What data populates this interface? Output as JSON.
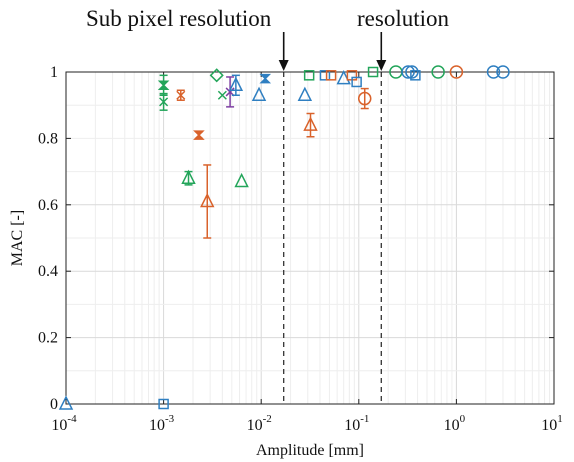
{
  "annotations": [
    {
      "id": "subpixel",
      "text": "Sub pixel resolution",
      "x_mm": 0.017
    },
    {
      "id": "resolution",
      "text": "resolution",
      "x_mm": 0.17
    }
  ],
  "chart_data": {
    "type": "scatter",
    "xscale": "log",
    "xlabel": "Amplitude [mm]",
    "ylabel": "MAC [-]",
    "xlim": [
      0.0001,
      10
    ],
    "ylim": [
      0,
      1
    ],
    "xticks": [
      0.0001,
      0.001,
      0.01,
      0.1,
      1,
      10
    ],
    "xtick_labels": [
      {
        "base": "10",
        "exp": "-4"
      },
      {
        "base": "10",
        "exp": "-3"
      },
      {
        "base": "10",
        "exp": "-2"
      },
      {
        "base": "10",
        "exp": "-1"
      },
      {
        "base": "10",
        "exp": "0"
      },
      {
        "base": "10",
        "exp": "1"
      }
    ],
    "yticks": [
      0,
      0.2,
      0.4,
      0.6,
      0.8,
      1
    ],
    "ytick_labels": [
      "0",
      "0.2",
      "0.4",
      "0.6",
      "0.8",
      "1"
    ],
    "grid": true,
    "vlines": [
      0.017,
      0.17
    ],
    "colors": {
      "blue": "#2f7fc1",
      "orange": "#d9622b",
      "green": "#23a55a",
      "purple": "#7e3fa3"
    },
    "points": [
      {
        "x": 0.0001,
        "y": 0.0,
        "marker": "triangle",
        "color": "blue"
      },
      {
        "x": 0.001,
        "y": 0.0,
        "marker": "square",
        "color": "blue"
      },
      {
        "x": 0.001,
        "y": 0.96,
        "marker": "hourglass",
        "color": "green",
        "err": 0.03
      },
      {
        "x": 0.001,
        "y": 0.91,
        "marker": "x",
        "color": "green",
        "err": 0.025
      },
      {
        "x": 0.0015,
        "y": 0.93,
        "marker": "x",
        "color": "orange",
        "err": 0.015
      },
      {
        "x": 0.0018,
        "y": 0.68,
        "marker": "triangle",
        "color": "green",
        "err": 0.02
      },
      {
        "x": 0.0023,
        "y": 0.81,
        "marker": "hourglass",
        "color": "orange",
        "err": 0.01
      },
      {
        "x": 0.0028,
        "y": 0.61,
        "marker": "triangle",
        "color": "orange",
        "err": 0.11
      },
      {
        "x": 0.0035,
        "y": 0.99,
        "marker": "diamond",
        "color": "green"
      },
      {
        "x": 0.004,
        "y": 0.93,
        "marker": "x",
        "color": "green"
      },
      {
        "x": 0.0048,
        "y": 0.94,
        "marker": "x",
        "color": "purple",
        "err": 0.045
      },
      {
        "x": 0.0055,
        "y": 0.96,
        "marker": "triangle",
        "color": "blue",
        "err": 0.03
      },
      {
        "x": 0.0063,
        "y": 0.67,
        "marker": "triangle",
        "color": "green"
      },
      {
        "x": 0.0095,
        "y": 0.93,
        "marker": "triangle",
        "color": "blue"
      },
      {
        "x": 0.011,
        "y": 0.98,
        "marker": "hourglass",
        "color": "blue"
      },
      {
        "x": 0.028,
        "y": 0.93,
        "marker": "triangle",
        "color": "blue"
      },
      {
        "x": 0.031,
        "y": 0.99,
        "marker": "square",
        "color": "green"
      },
      {
        "x": 0.032,
        "y": 0.84,
        "marker": "triangle",
        "color": "orange",
        "err": 0.035
      },
      {
        "x": 0.045,
        "y": 0.99,
        "marker": "square",
        "color": "blue"
      },
      {
        "x": 0.052,
        "y": 0.99,
        "marker": "square",
        "color": "orange"
      },
      {
        "x": 0.07,
        "y": 0.98,
        "marker": "triangle",
        "color": "blue"
      },
      {
        "x": 0.085,
        "y": 0.99,
        "marker": "square",
        "color": "orange"
      },
      {
        "x": 0.095,
        "y": 0.97,
        "marker": "square",
        "color": "blue"
      },
      {
        "x": 0.115,
        "y": 0.92,
        "marker": "circle",
        "color": "orange",
        "err": 0.03
      },
      {
        "x": 0.14,
        "y": 1.0,
        "marker": "square",
        "color": "green"
      },
      {
        "x": 0.24,
        "y": 1.0,
        "marker": "circle",
        "color": "green"
      },
      {
        "x": 0.32,
        "y": 1.0,
        "marker": "circle",
        "color": "blue"
      },
      {
        "x": 0.35,
        "y": 1.0,
        "marker": "circle",
        "color": "blue"
      },
      {
        "x": 0.38,
        "y": 0.99,
        "marker": "square",
        "color": "blue"
      },
      {
        "x": 0.65,
        "y": 1.0,
        "marker": "circle",
        "color": "green"
      },
      {
        "x": 1.0,
        "y": 1.0,
        "marker": "circle",
        "color": "orange"
      },
      {
        "x": 2.4,
        "y": 1.0,
        "marker": "circle",
        "color": "blue"
      },
      {
        "x": 3.0,
        "y": 1.0,
        "marker": "circle",
        "color": "blue"
      }
    ]
  }
}
